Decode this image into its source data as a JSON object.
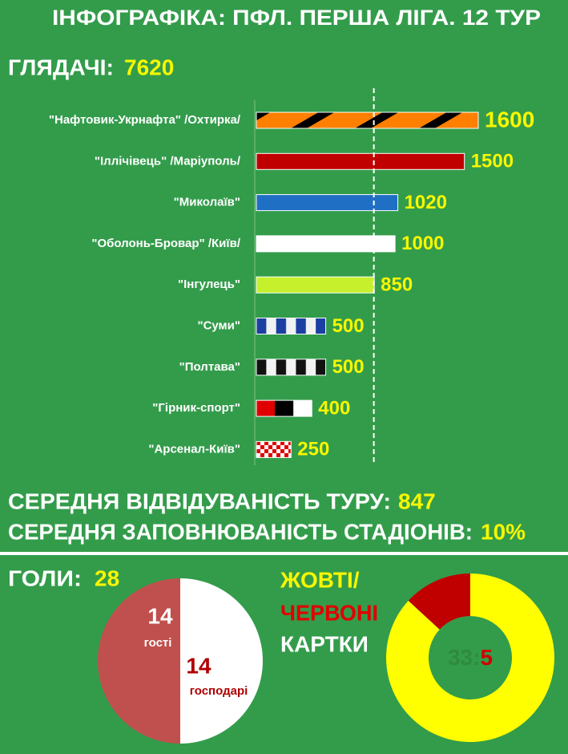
{
  "title": "ІНФОГРАФІКА: ПФЛ. ПЕРША ЛІГА. 12 ТУР",
  "chart_data": [
    {
      "type": "bar",
      "title": "ГЛЯДАЧІ:",
      "total": 7620,
      "categories": [
        "\"Нафтовик-Укрнафта\" /Охтирка/",
        "\"Іллічівець\" /Маріуполь/",
        "\"Миколаїв\"",
        "\"Оболонь-Бровар\" /Київ/",
        "\"Інгулець\"",
        "\"Суми\"",
        "\"Полтава\"",
        "\"Гірник-спорт\"",
        "\"Арсенал-Київ\""
      ],
      "values": [
        1600,
        1500,
        1020,
        1000,
        850,
        500,
        500,
        400,
        250
      ],
      "xlim": [
        0,
        1600
      ],
      "bar_styles": [
        {
          "pattern": "diagonal",
          "colors": [
            "#ff7f00",
            "#000000"
          ]
        },
        {
          "pattern": "solid",
          "colors": [
            "#c00000"
          ]
        },
        {
          "pattern": "solid",
          "colors": [
            "#1f6fc5"
          ]
        },
        {
          "pattern": "solid",
          "colors": [
            "#ffffff"
          ]
        },
        {
          "pattern": "solid",
          "colors": [
            "#c6f02c"
          ]
        },
        {
          "pattern": "blocks",
          "colors": [
            "#1c3fa3",
            "#f2f2f2",
            "#1c3fa3",
            "#f2f2f2",
            "#1c3fa3",
            "#f2f2f2",
            "#1c3fa3"
          ]
        },
        {
          "pattern": "blocks",
          "colors": [
            "#111111",
            "#f2f2f2",
            "#111111",
            "#f2f2f2",
            "#111111",
            "#f2f2f2",
            "#111111"
          ]
        },
        {
          "pattern": "blocks",
          "colors": [
            "#e00000",
            "#000000",
            "#ffffff"
          ]
        },
        {
          "pattern": "checker",
          "colors": [
            "#e00000",
            "#ffffff"
          ]
        }
      ]
    },
    {
      "type": "pie",
      "title": "ГОЛИ:",
      "total": 28,
      "categories": [
        "гості",
        "господарі"
      ],
      "values": [
        14,
        14
      ],
      "colors": [
        "#c0504d",
        "#ffffff"
      ]
    },
    {
      "type": "donut",
      "title_lines": [
        "ЖОВТІ/",
        "ЧЕРВОНІ",
        "КАРТКИ"
      ],
      "values": [
        33,
        5
      ],
      "separator": ":",
      "colors": [
        "#ffff00",
        "#c00000"
      ]
    }
  ],
  "stats": [
    {
      "label": "СЕРЕДНЯ ВІДВІДУВАНІСТЬ ТУРУ:",
      "value": 847
    },
    {
      "label": "СЕРЕДНЯ ЗАПОВНЮВАНІСТЬ СТАДІОНІВ:",
      "value": 10,
      "value_label": "10%"
    }
  ]
}
